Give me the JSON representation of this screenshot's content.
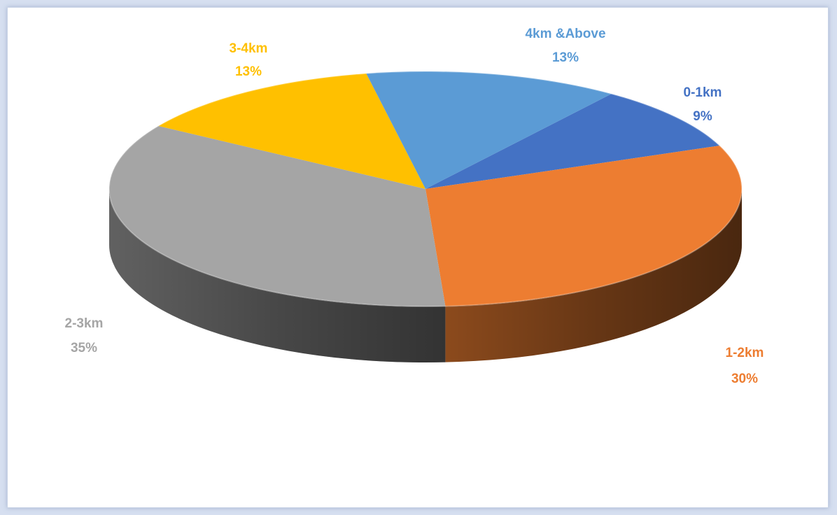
{
  "chart_data": {
    "type": "pie",
    "style": "3d",
    "slices": [
      {
        "label": "0-1km",
        "value": 9,
        "display": "9%",
        "color": "#4472c4",
        "label_color": "#4472c4"
      },
      {
        "label": "1-2km",
        "value": 30,
        "display": "30%",
        "color": "#ed7d31",
        "label_color": "#ed7d31"
      },
      {
        "label": "2-3km",
        "value": 35,
        "display": "35%",
        "color": "#a5a5a5",
        "label_color": "#a5a5a5"
      },
      {
        "label": "3-4km",
        "value": 13,
        "display": "13%",
        "color": "#ffc000",
        "label_color": "#ffc000"
      },
      {
        "label": "4km &Above",
        "value": 13,
        "display": "13%",
        "color": "#5b9bd5",
        "label_color": "#5b9bd5"
      }
    ]
  }
}
